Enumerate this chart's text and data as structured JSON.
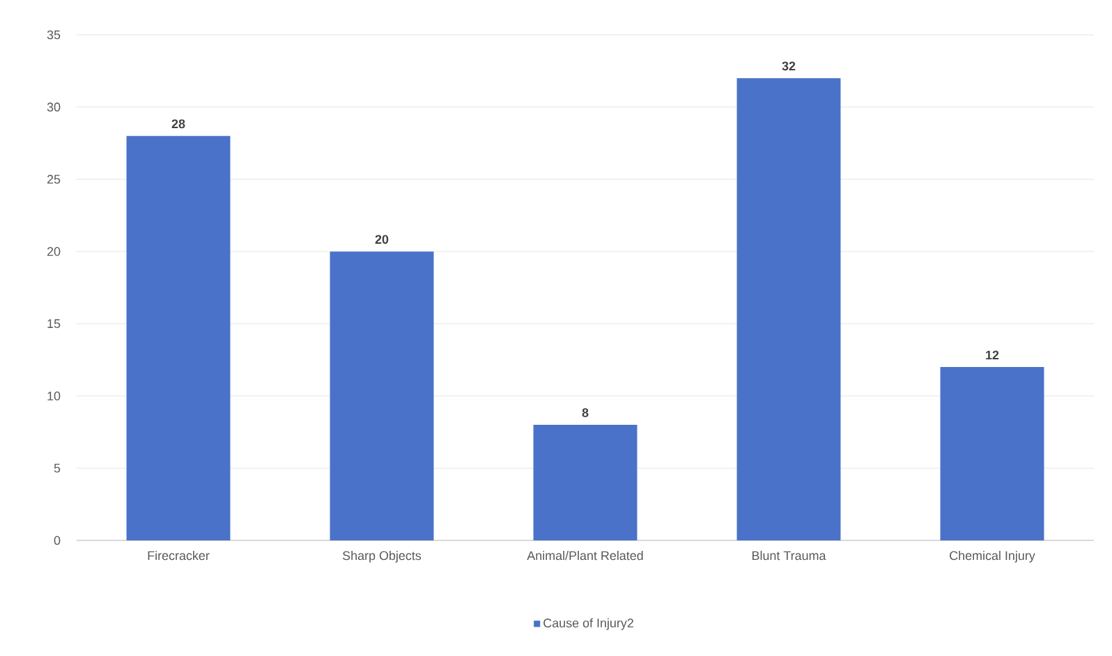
{
  "chart_data": {
    "type": "bar",
    "categories": [
      "Firecracker",
      "Sharp Objects",
      "Animal/Plant Related",
      "Blunt Trauma",
      "Chemical Injury"
    ],
    "series": [
      {
        "name": "Cause of Injury2",
        "color": "#4a72c8",
        "values": [
          28,
          20,
          8,
          32,
          12
        ]
      }
    ],
    "ylim": [
      0,
      35
    ],
    "yticks": [
      0,
      5,
      10,
      15,
      20,
      25,
      30,
      35
    ],
    "grid": "y",
    "legend": "bottom",
    "data_labels": true
  }
}
